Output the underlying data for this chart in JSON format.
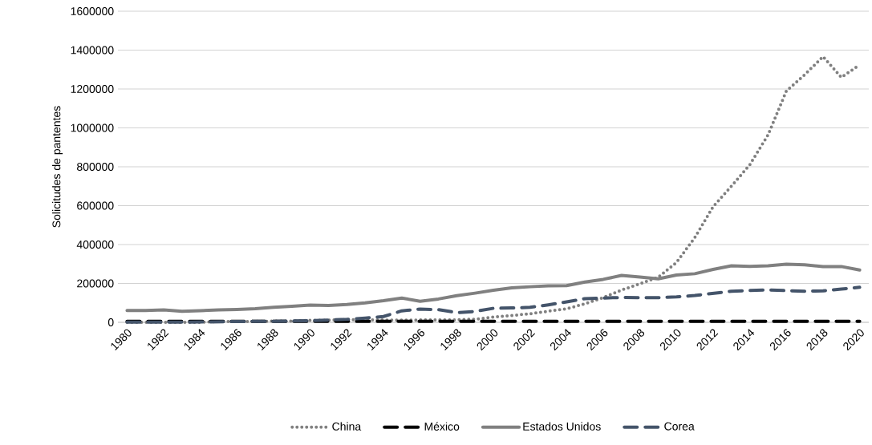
{
  "chart_data": {
    "type": "line",
    "ylabel": "Solicitudes de pantentes",
    "categories": [
      "1980",
      null,
      "1982",
      null,
      "1984",
      null,
      "1986",
      null,
      "1988",
      null,
      "1990",
      null,
      "1992",
      null,
      "1994",
      null,
      "1996",
      null,
      "1998",
      null,
      "2000",
      null,
      "2002",
      null,
      "2004",
      null,
      "2006",
      null,
      "2008",
      null,
      "2010",
      null,
      "2012",
      null,
      "2014",
      null,
      "2016",
      null,
      "2018",
      null,
      "2020"
    ],
    "series": [
      {
        "name": "China",
        "color": "#808080",
        "line_style": "dotted",
        "values": [
          0,
          0,
          0,
          0,
          0,
          4000,
          4000,
          5000,
          6000,
          6000,
          10000,
          11000,
          14000,
          13000,
          12000,
          11000,
          12000,
          12000,
          13000,
          16000,
          27000,
          35000,
          44000,
          57000,
          70000,
          95000,
          127000,
          166000,
          198000,
          232000,
          308000,
          436000,
          595000,
          700000,
          810000,
          964000,
          1190000,
          1273000,
          1367000,
          1260000,
          1324000
        ]
      },
      {
        "name": "México",
        "color": "#000000",
        "line_style": "dashed",
        "values": [
          5000,
          5000,
          5000,
          5000,
          5000,
          5000,
          5000,
          5000,
          5000,
          5000,
          5000,
          5000,
          5000,
          5000,
          5000,
          5000,
          5000,
          5000,
          5000,
          5000,
          5000,
          5000,
          5000,
          5000,
          5000,
          5000,
          5000,
          5000,
          5000,
          5000,
          5000,
          5000,
          5000,
          5000,
          5000,
          5000,
          5000,
          5000,
          5000,
          5000,
          5000
        ]
      },
      {
        "name": "Estados Unidos",
        "color": "#808080",
        "line_style": "solid",
        "values": [
          61000,
          61000,
          64000,
          57000,
          60000,
          64000,
          66000,
          70000,
          77000,
          82000,
          89000,
          87000,
          92000,
          100000,
          111000,
          125000,
          108000,
          120000,
          137000,
          150000,
          165000,
          177000,
          183000,
          188000,
          189000,
          207000,
          221000,
          241000,
          233000,
          224000,
          243000,
          250000,
          272000,
          291000,
          288000,
          291000,
          299000,
          296000,
          287000,
          287000,
          269000
        ]
      },
      {
        "name": "Corea",
        "color": "#44546a",
        "line_style": "dashed",
        "values": [
          1000,
          1000,
          1000,
          1000,
          2000,
          3000,
          4000,
          5000,
          5000,
          7000,
          9000,
          12000,
          15000,
          22000,
          30000,
          59000,
          68000,
          65000,
          50000,
          56000,
          72000,
          74000,
          77000,
          90000,
          105000,
          122000,
          125000,
          128000,
          127000,
          127000,
          131000,
          138000,
          149000,
          160000,
          164000,
          167000,
          163000,
          160000,
          162000,
          171000,
          180000
        ]
      }
    ],
    "ylim": [
      0,
      1600000
    ],
    "yticks": [
      0,
      200000,
      400000,
      600000,
      800000,
      1000000,
      1200000,
      1400000,
      1600000
    ],
    "grid": "y",
    "legend": "bottom",
    "marker": "none"
  }
}
